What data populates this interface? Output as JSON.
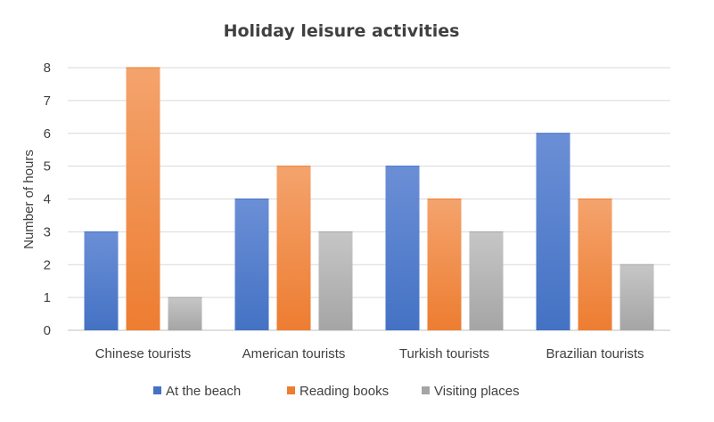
{
  "chart_data": {
    "type": "bar",
    "title": "Holiday leisure activities",
    "xlabel": "",
    "ylabel": "Number of hours",
    "categories": [
      "Chinese tourists",
      "American tourists",
      "Turkish tourists",
      "Brazilian tourists"
    ],
    "series": [
      {
        "name": "At the beach",
        "values": [
          3,
          4,
          5,
          6
        ],
        "color": "#4472c4",
        "color_light": "#6b8fd6"
      },
      {
        "name": "Reading books",
        "values": [
          8,
          5,
          4,
          4
        ],
        "color": "#ed7d31",
        "color_light": "#f4a36d"
      },
      {
        "name": "Visiting places",
        "values": [
          1,
          3,
          3,
          2
        ],
        "color": "#a5a5a5",
        "color_light": "#c6c6c6"
      }
    ],
    "yticks": [
      "0",
      "1",
      "2",
      "3",
      "4",
      "5",
      "6",
      "7",
      "8"
    ],
    "ylim": [
      0,
      8
    ],
    "grid": true,
    "legend_position": "bottom"
  }
}
